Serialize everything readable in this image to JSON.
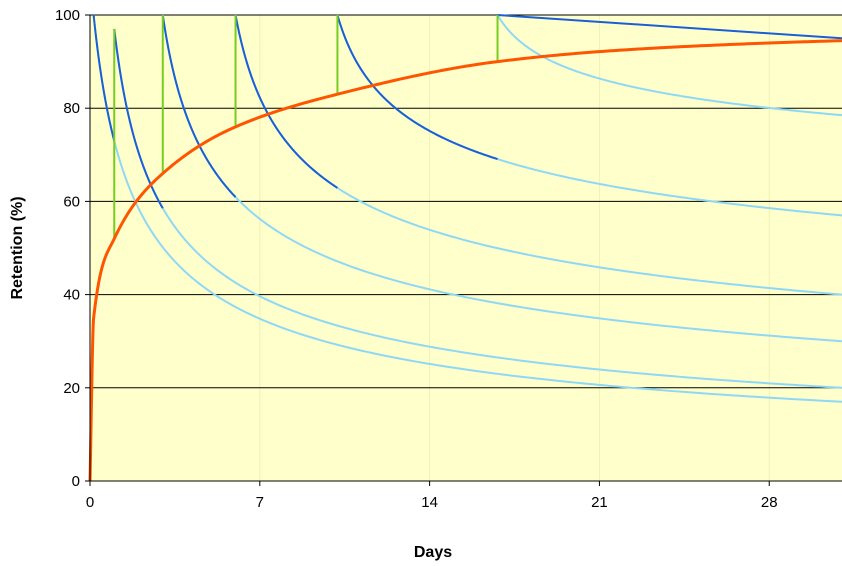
{
  "chart_data": {
    "type": "line",
    "title": "",
    "xlabel": "Days",
    "ylabel": "Retention (%)",
    "xlim": [
      0,
      31
    ],
    "ylim": [
      0,
      100
    ],
    "x_ticks": [
      0,
      7,
      14,
      21,
      28
    ],
    "y_ticks": [
      0,
      20,
      40,
      60,
      80,
      100
    ],
    "grid": {
      "horizontal": true,
      "vertical": true
    },
    "colors": {
      "plot_background": "#ffffcc",
      "horizontal_grid": "#000000",
      "vertical_grid": "#f3f0b4",
      "active_decay": "#1a5fd6",
      "faded_decay": "#8fd8f5",
      "review": "#77cc22",
      "retention_envelope": "#ff5500"
    },
    "reviews": [
      {
        "day": 0.15,
        "start": 100,
        "low": 0,
        "remaining_at_31": 17
      },
      {
        "day": 1.0,
        "start": 97,
        "low": 52,
        "remaining_at_31": 20
      },
      {
        "day": 3.0,
        "start": 100,
        "low": 66,
        "remaining_at_31": 30
      },
      {
        "day": 6.0,
        "start": 100,
        "low": 76,
        "remaining_at_31": 40
      },
      {
        "day": 10.2,
        "start": 100,
        "low": 83,
        "remaining_at_31": 57
      },
      {
        "day": 16.8,
        "start": 100,
        "low": 90,
        "remaining_at_31": 78.5
      }
    ],
    "final_decay": {
      "start_day": 16.8,
      "start": 100,
      "end_day": 31,
      "end": 95
    },
    "retention_envelope": {
      "name": "",
      "x": [
        0,
        0.15,
        1.0,
        3.0,
        6.0,
        10.2,
        16.8,
        22,
        28,
        31
      ],
      "y": [
        0,
        35,
        52,
        66,
        76,
        83,
        90,
        92.5,
        94,
        94.5
      ]
    }
  }
}
